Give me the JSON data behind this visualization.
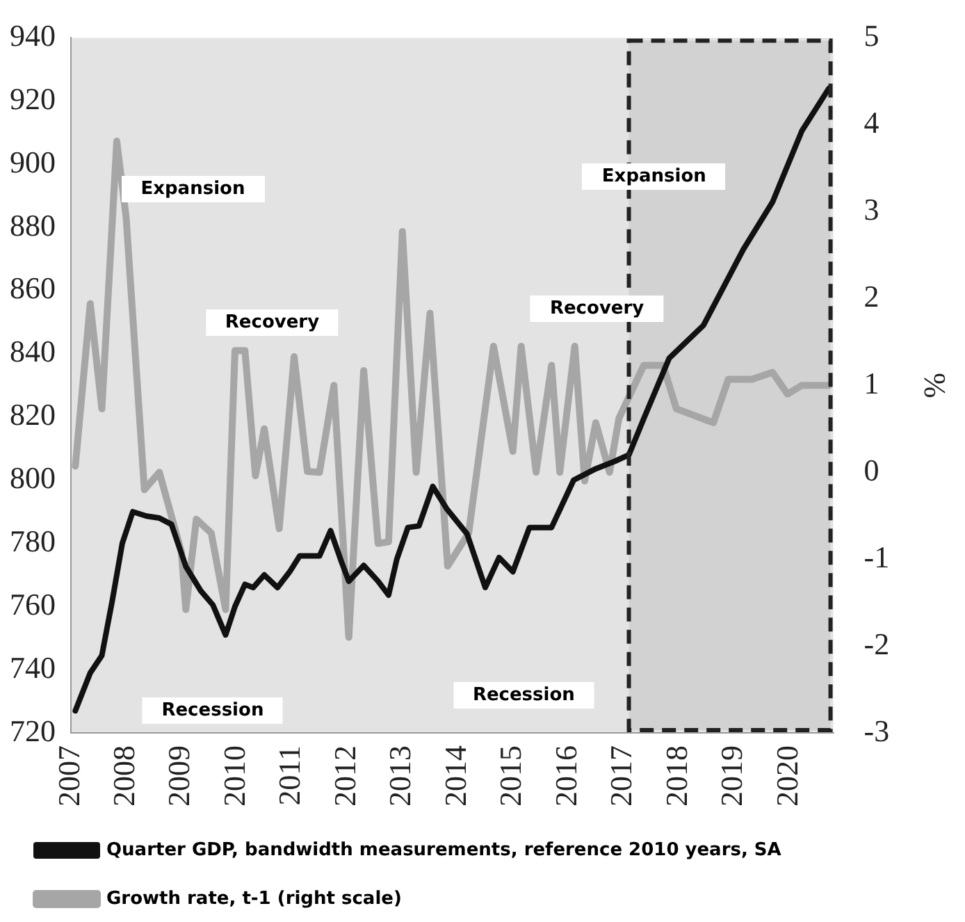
{
  "chart_data": {
    "type": "line",
    "y2label": "%",
    "series": [
      {
        "name": "Quarter GDP, bandwidth measurements, reference 2010 years, SA",
        "color": "#111111",
        "x": [
          2007.08,
          2007.35,
          2007.56,
          2007.75,
          2007.93,
          2008.12,
          2008.37,
          2008.6,
          2008.82,
          2009.08,
          2009.35,
          2009.57,
          2009.8,
          2009.97,
          2010.15,
          2010.3,
          2010.5,
          2010.74,
          2010.96,
          2011.14,
          2011.5,
          2011.7,
          2011.9,
          2012.03,
          2012.3,
          2012.56,
          2012.75,
          2012.9,
          2013.1,
          2013.3,
          2013.55,
          2013.8,
          2014.17,
          2014.5,
          2014.75,
          2015.0,
          2015.3,
          2015.7,
          2016.1,
          2016.5,
          2016.85,
          2017.1,
          2017.37,
          2017.83,
          2018.45,
          2019.17,
          2019.7,
          2020.23,
          2020.72
        ],
        "values": [
          727,
          739,
          744.5,
          762,
          780,
          790,
          788.6,
          788,
          786,
          772.7,
          765,
          760.5,
          751,
          760,
          767,
          766,
          770,
          766,
          771,
          776,
          776,
          784,
          774,
          768,
          773,
          768,
          763.6,
          775,
          785,
          785.5,
          798,
          791,
          783,
          766,
          775.5,
          771,
          785,
          785,
          800,
          803.6,
          806,
          808,
          819.5,
          838.6,
          849,
          873,
          888,
          910.5,
          924
        ]
      },
      {
        "name": "Growth rate, t-1 (right scale)",
        "color": "#a6a6a6",
        "axis": "y2",
        "x": [
          2007.08,
          2007.35,
          2007.56,
          2007.83,
          2008.0,
          2008.33,
          2008.6,
          2009.0,
          2009.08,
          2009.27,
          2009.54,
          2009.8,
          2009.97,
          2010.15,
          2010.34,
          2010.5,
          2010.77,
          2011.04,
          2011.28,
          2011.5,
          2011.76,
          2012.03,
          2012.3,
          2012.56,
          2012.75,
          2013.0,
          2013.25,
          2013.5,
          2013.82,
          2014.2,
          2014.65,
          2015.0,
          2015.15,
          2015.42,
          2015.7,
          2015.85,
          2016.12,
          2016.3,
          2016.5,
          2016.75,
          2016.92,
          2017.37,
          2017.72,
          2017.96,
          2018.63,
          2018.9,
          2019.33,
          2019.7,
          2019.97,
          2020.23,
          2020.72
        ],
        "values": [
          0.07,
          1.94,
          0.73,
          3.81,
          2.93,
          -0.2,
          0,
          -0.92,
          -1.58,
          -0.54,
          -0.7,
          -1.58,
          1.4,
          1.4,
          -0.04,
          0.5,
          -0.65,
          1.33,
          0.01,
          0,
          1.0,
          -1.9,
          1.17,
          -0.82,
          -0.8,
          2.77,
          0.0,
          1.83,
          -1.08,
          -0.7,
          1.45,
          0.24,
          1.45,
          0,
          1.23,
          0,
          1.45,
          -0.1,
          0.57,
          0,
          0.62,
          1.23,
          1.23,
          0.73,
          0.57,
          1.07,
          1.07,
          1.15,
          0.9,
          1.0,
          1.0
        ]
      }
    ],
    "xlim": [
      2007,
      2020.8
    ],
    "xticks": [
      2007,
      2008,
      2009,
      2010,
      2011,
      2012,
      2013,
      2014,
      2015,
      2016,
      2017,
      2018,
      2019,
      2020
    ],
    "ylim": [
      720,
      940
    ],
    "yticks": [
      720,
      740,
      760,
      780,
      800,
      820,
      840,
      860,
      880,
      900,
      920,
      940
    ],
    "y2lim": [
      -3,
      5
    ],
    "y2ticks": [
      -3,
      -2,
      -1,
      0,
      1,
      2,
      3,
      4,
      5
    ],
    "bands": [
      {
        "axis": "x",
        "from": 2017.1,
        "to": 2020.75,
        "color": "#d2d2d2"
      }
    ],
    "annotations": [
      "Expansion",
      "Recovery",
      "Recession",
      "Recovery",
      "Expansion",
      "Recession"
    ],
    "legend": "bottom",
    "grid": false,
    "marker": "none",
    "line_style": "solid"
  }
}
